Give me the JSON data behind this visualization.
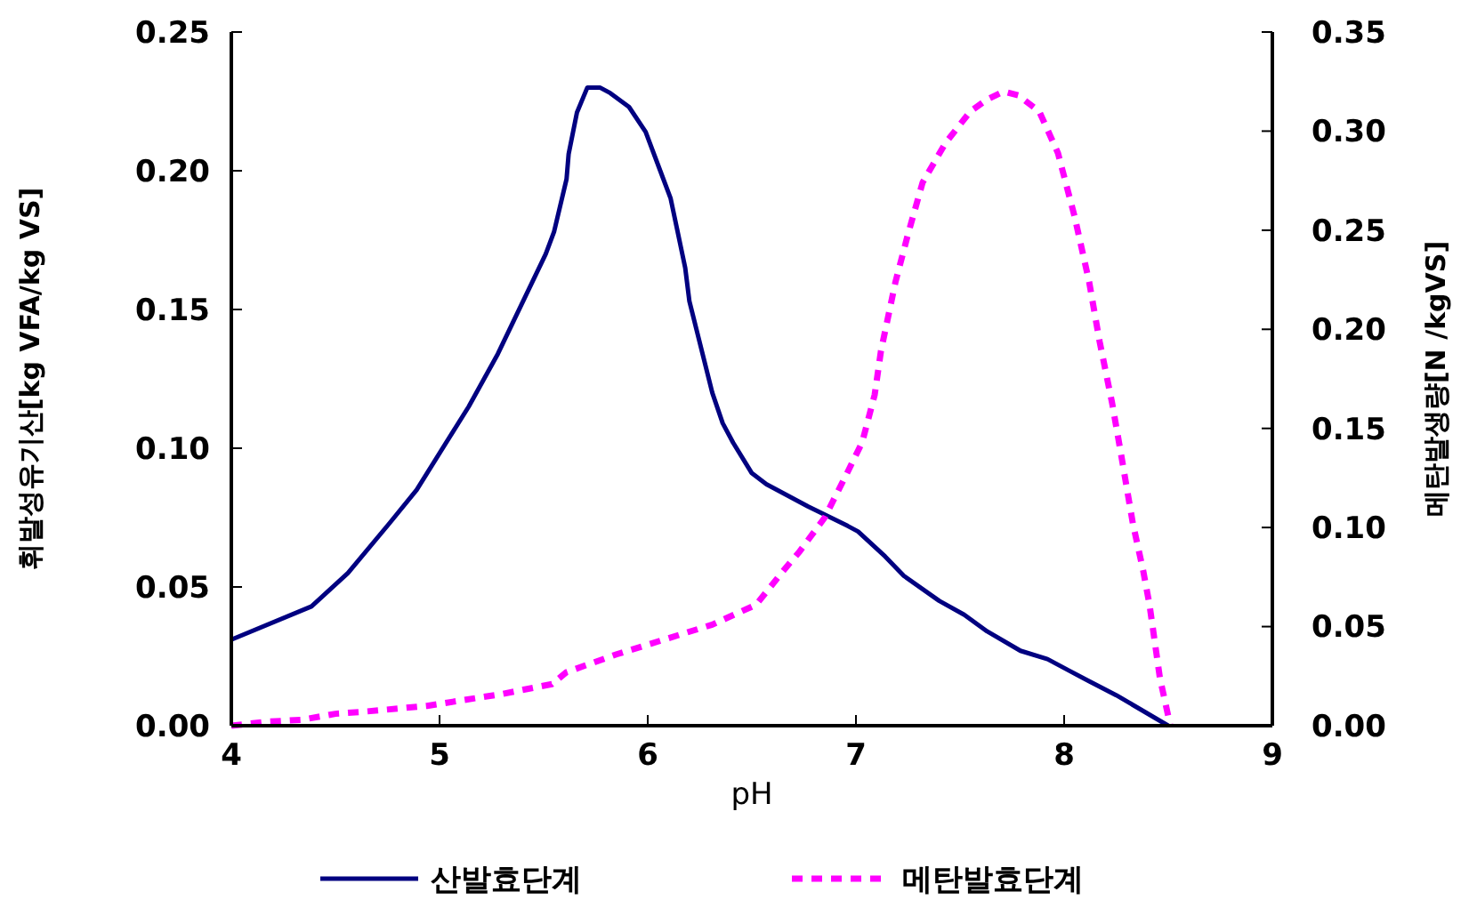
{
  "chart_data": {
    "type": "line",
    "xlabel": "pH",
    "ylabel": "휘발성유기산[kg VFA/kg VS]",
    "y2label": "메탄발생량[N /kgVS]",
    "xlim": [
      4,
      9
    ],
    "xticks": [
      4,
      5,
      6,
      7,
      8,
      9
    ],
    "ylim": [
      0,
      0.25
    ],
    "yticks": [
      {
        "value": 0,
        "label": "0.00"
      },
      {
        "value": 0.05,
        "label": "0.05"
      },
      {
        "value": 0.1,
        "label": "0.10"
      },
      {
        "value": 0.15,
        "label": "0.15"
      },
      {
        "value": 0.2,
        "label": "0.20"
      },
      {
        "value": 0.25,
        "label": "0.25"
      }
    ],
    "y2lim": [
      0,
      0.35
    ],
    "y2ticks": [
      {
        "value": 0,
        "label": "0.00"
      },
      {
        "value": 0.05,
        "label": "0.05"
      },
      {
        "value": 0.1,
        "label": "0.10"
      },
      {
        "value": 0.15,
        "label": "0.15"
      },
      {
        "value": 0.2,
        "label": "0.20"
      },
      {
        "value": 0.25,
        "label": "0.25"
      },
      {
        "value": 0.3,
        "label": "0.30"
      },
      {
        "value": 0.35,
        "label": "0.35"
      }
    ],
    "grid": false,
    "legend": "bottom",
    "marker": "none",
    "series": [
      {
        "name": "산발효단계",
        "color": "#000080",
        "line_style": "solid",
        "x": [
          4,
          4.385,
          4.56,
          4.76,
          4.89,
          5.14,
          5.28,
          5.51,
          5.55,
          5.61,
          5.62,
          5.66,
          5.71,
          5.77,
          5.82,
          5.91,
          5.99,
          6.06,
          6.11,
          6.18,
          6.2,
          6.31,
          6.36,
          6.41,
          6.5,
          6.57,
          6.77,
          6.96,
          7.01,
          7.14,
          7.23,
          7.4,
          7.52,
          7.63,
          7.79,
          7.92,
          8.02,
          8.12,
          8.25,
          8.5
        ],
        "values": [
          0.031,
          0.043,
          0.055,
          0.073,
          0.085,
          0.115,
          0.134,
          0.17,
          0.178,
          0.197,
          0.206,
          0.221,
          0.23,
          0.23,
          0.228,
          0.223,
          0.214,
          0.2,
          0.19,
          0.165,
          0.153,
          0.12,
          0.109,
          0.102,
          0.091,
          0.087,
          0.079,
          0.072,
          0.07,
          0.061,
          0.054,
          0.045,
          0.04,
          0.034,
          0.027,
          0.024,
          0.02,
          0.016,
          0.011,
          0
        ]
      },
      {
        "name": "메탄발효단계",
        "color": "#ff00ff",
        "line_style": "dashed",
        "axis": "y2",
        "x": [
          4,
          4.17,
          4.34,
          4.5,
          4.63,
          4.94,
          5.3,
          5.54,
          5.61,
          5.85,
          6.31,
          6.52,
          6.65,
          6.73,
          6.85,
          6.96,
          7.03,
          7.09,
          7.12,
          7.19,
          7.25,
          7.32,
          7.43,
          7.55,
          7.63,
          7.71,
          7.78,
          7.88,
          7.97,
          8.05,
          8.12,
          8.17,
          8.23,
          8.27,
          8.33,
          8.38,
          8.41,
          8.46,
          8.51
        ],
        "values": [
          0,
          0.002,
          0.003,
          0.006,
          0.007,
          0.01,
          0.016,
          0.021,
          0.027,
          0.036,
          0.051,
          0.061,
          0.078,
          0.088,
          0.105,
          0.128,
          0.143,
          0.167,
          0.189,
          0.224,
          0.248,
          0.274,
          0.294,
          0.31,
          0.316,
          0.32,
          0.318,
          0.31,
          0.289,
          0.257,
          0.224,
          0.194,
          0.163,
          0.139,
          0.102,
          0.078,
          0.061,
          0.024,
          0
        ]
      }
    ]
  }
}
